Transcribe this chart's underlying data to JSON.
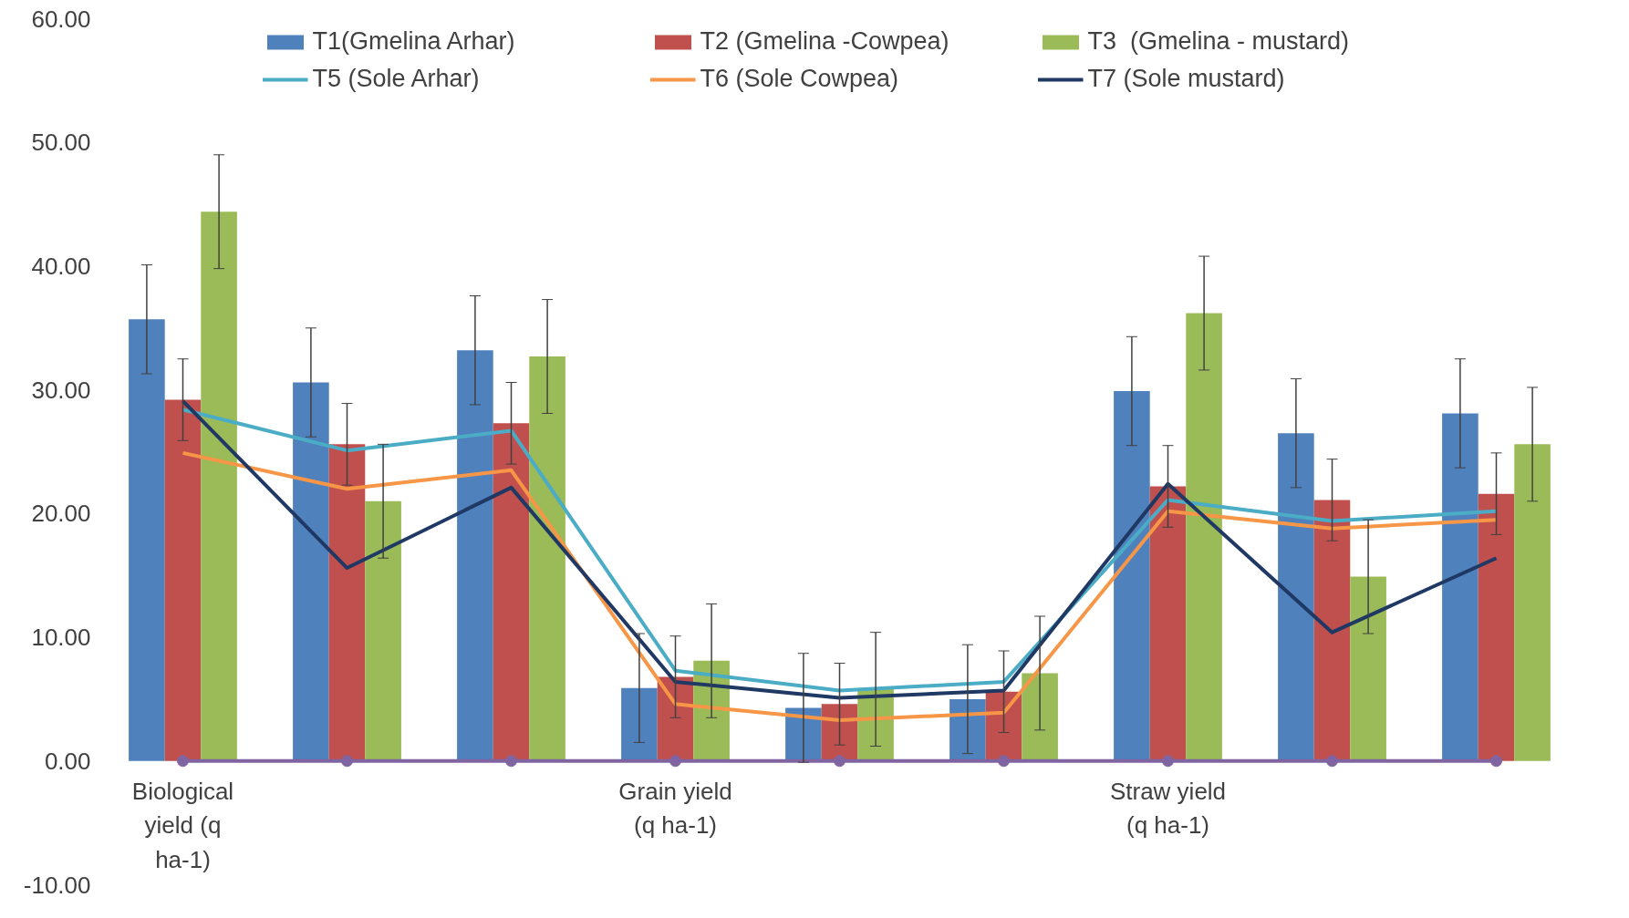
{
  "chart_data": {
    "type": "bar",
    "categories": [
      "Biological yield (q ha-1)",
      null,
      null,
      "Grain yield (q ha-1)",
      null,
      null,
      "Straw yield (q ha-1)",
      null,
      null
    ],
    "series": [
      {
        "name": "T1(Gmelina Arhar)",
        "color": "#4f81bd",
        "values": [
          35.7,
          30.6,
          33.2,
          5.9,
          4.3,
          5.0,
          29.9,
          26.5,
          28.1
        ],
        "errors": [
          4.4,
          4.4,
          4.4,
          4.4,
          4.4,
          4.4,
          4.4,
          4.4,
          4.4
        ]
      },
      {
        "name": "T2 (Gmelina -Cowpea)",
        "color": "#c0504d",
        "values": [
          29.2,
          25.6,
          27.3,
          6.8,
          4.6,
          5.6,
          22.2,
          21.1,
          21.6
        ],
        "errors": [
          3.3,
          3.3,
          3.3,
          3.3,
          3.3,
          3.3,
          3.3,
          3.3,
          3.3
        ]
      },
      {
        "name": "T3  (Gmelina - mustard)",
        "color": "#9bbb59",
        "values": [
          44.4,
          21.0,
          32.7,
          8.1,
          5.8,
          7.1,
          36.2,
          14.9,
          25.6
        ],
        "errors": [
          4.6,
          4.6,
          4.6,
          4.6,
          4.6,
          4.6,
          4.6,
          4.6,
          4.6
        ]
      },
      {
        "type": "line",
        "name": "T5 (Sole Arhar)",
        "color": "#4bacc6",
        "values": [
          28.4,
          25.1,
          26.7,
          7.3,
          5.7,
          6.4,
          21.1,
          19.4,
          20.2
        ]
      },
      {
        "type": "line",
        "name": "T6 (Sole Cowpea)",
        "color": "#f79646",
        "values": [
          24.9,
          22.0,
          23.5,
          4.6,
          3.3,
          3.9,
          20.2,
          18.8,
          19.5
        ]
      },
      {
        "type": "line",
        "name": "T7 (Sole mustard)",
        "color": "#1f3864",
        "values": [
          29.1,
          15.6,
          22.1,
          6.4,
          5.1,
          5.7,
          22.4,
          10.4,
          16.4
        ]
      },
      {
        "type": "line",
        "color": "#8064a2",
        "marker": "circle",
        "values": [
          0,
          0,
          0,
          0,
          0,
          0,
          0,
          0,
          0
        ]
      }
    ],
    "ylim": [
      -10,
      60
    ],
    "yticks": [
      {
        "value": -10,
        "label": "-10.00"
      },
      {
        "value": 0,
        "label": "0.00"
      },
      {
        "value": 10,
        "label": "10.00"
      },
      {
        "value": 20,
        "label": "20.00"
      },
      {
        "value": 30,
        "label": "30.00"
      },
      {
        "value": 40,
        "label": "40.00"
      },
      {
        "value": 50,
        "label": "50.00"
      },
      {
        "value": 60,
        "label": "60.00"
      }
    ],
    "grid": false,
    "legend": "top"
  }
}
